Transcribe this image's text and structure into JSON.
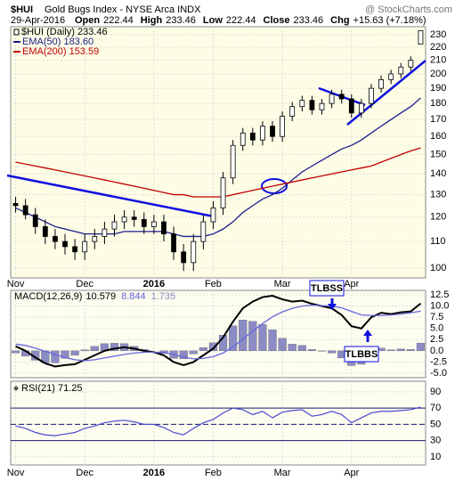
{
  "chart_data": [
    {
      "type": "candlestick",
      "title": "$HUI",
      "subtitle": "Gold Bugs Index - NYSE Arca INDX",
      "credit": "@ StockCharts.com",
      "date": "29-Apr-2016",
      "quote": [
        {
          "label": "Open",
          "value": 222.44
        },
        {
          "label": "High",
          "value": 233.46
        },
        {
          "label": "Low",
          "value": 222.44
        },
        {
          "label": "Close",
          "value": 233.46
        },
        {
          "label": "Chg",
          "value": "+15.63 (+7.18%)"
        }
      ],
      "categories": [
        "Nov",
        null,
        null,
        null,
        null,
        null,
        null,
        "Dec",
        null,
        null,
        null,
        null,
        null,
        null,
        "2016",
        null,
        null,
        null,
        null,
        null,
        "Feb",
        null,
        null,
        null,
        null,
        null,
        null,
        "Mar",
        null,
        null,
        null,
        null,
        null,
        null,
        "Apr",
        null,
        null,
        null,
        null,
        null,
        null,
        null
      ],
      "candle_name": "$HUI (Daily) 233.46",
      "open": [
        126,
        125,
        121,
        116,
        112,
        110,
        108,
        106,
        110,
        112,
        115,
        118,
        120,
        119,
        116,
        118,
        113,
        106,
        102,
        110,
        118,
        124,
        138,
        155,
        162,
        158,
        166,
        160,
        172,
        178,
        182,
        176,
        180,
        186,
        183,
        174,
        180,
        190,
        196,
        200,
        205,
        222.44
      ],
      "high": [
        129,
        128,
        124,
        119,
        115,
        113,
        111,
        113,
        115,
        118,
        121,
        123,
        123,
        122,
        121,
        121,
        116,
        109,
        113,
        121,
        127,
        141,
        158,
        165,
        165,
        169,
        169,
        175,
        181,
        185,
        185,
        183,
        189,
        189,
        186,
        183,
        193,
        199,
        203,
        208,
        213,
        233.46
      ],
      "low": [
        122,
        119,
        113,
        109,
        107,
        105,
        103,
        103,
        107,
        109,
        112,
        115,
        116,
        113,
        113,
        110,
        103,
        99,
        99,
        107,
        115,
        121,
        135,
        152,
        155,
        155,
        157,
        157,
        169,
        175,
        173,
        173,
        177,
        180,
        171,
        171,
        177,
        187,
        193,
        197,
        202,
        222.44
      ],
      "close": [
        125,
        121,
        116,
        112,
        110,
        108,
        106,
        110,
        112,
        115,
        118,
        120,
        119,
        116,
        118,
        113,
        106,
        102,
        110,
        118,
        124,
        138,
        155,
        162,
        158,
        166,
        160,
        172,
        178,
        182,
        176,
        180,
        186,
        183,
        174,
        180,
        190,
        196,
        200,
        205,
        210,
        233.46
      ],
      "series": [
        {
          "name": "EMA(50) 183.60",
          "color": "#1c1c8c",
          "values": [
            124,
            122,
            120,
            118,
            116,
            115,
            114,
            113,
            113,
            113,
            113,
            114,
            114,
            114,
            114,
            114,
            113,
            112,
            112,
            112,
            113,
            115,
            118,
            122,
            125,
            128,
            130,
            133,
            137,
            141,
            144,
            147,
            150,
            153,
            155,
            158,
            162,
            166,
            170,
            174,
            178,
            183.6
          ]
        },
        {
          "name": "EMA(200) 153.59",
          "color": "#c00000",
          "values": [
            146,
            145,
            144,
            143,
            142,
            141,
            140,
            139,
            138,
            137,
            136,
            135,
            134,
            133,
            132,
            131,
            130,
            130,
            129,
            129,
            129,
            129,
            130,
            131,
            132,
            133,
            134,
            135,
            136,
            137,
            138,
            139,
            140,
            141,
            142,
            143,
            144,
            146,
            148,
            150,
            152,
            153.59
          ]
        }
      ],
      "log": true,
      "grid": true,
      "ylim": [
        96.6,
        236.7
      ],
      "yticks": [
        100,
        110,
        120,
        130,
        140,
        150,
        160,
        170,
        180,
        190,
        200,
        210,
        220,
        230
      ]
    },
    {
      "type": "macd",
      "legend": "MACD(12,26,9)",
      "legend_values": [
        10.579,
        8.844,
        1.735
      ],
      "series": [
        {
          "kind": "line",
          "color": "#000000",
          "values": [
            1,
            0,
            -1.5,
            -2.8,
            -3.5,
            -3.2,
            -3,
            -2,
            -1,
            0,
            0.5,
            0.8,
            0.5,
            0,
            -0.3,
            -1,
            -2.5,
            -3.2,
            -2.5,
            -1,
            0.5,
            3,
            6.5,
            9.5,
            11,
            12,
            12.3,
            11.5,
            11,
            11.2,
            10.5,
            10,
            9.5,
            8,
            5.5,
            5,
            7.5,
            8.5,
            8.2,
            8.6,
            8.8,
            10.579
          ]
        },
        {
          "kind": "line",
          "color": "#6666dd",
          "values": [
            1.5,
            1.2,
            0.6,
            -0.1,
            -0.8,
            -1.5,
            -2,
            -2.2,
            -2,
            -1.6,
            -1.2,
            -0.8,
            -0.5,
            -0.3,
            -0.3,
            -0.4,
            -0.8,
            -1.4,
            -1.8,
            -1.7,
            -1.3,
            -0.5,
            0.9,
            2.6,
            4.4,
            6.1,
            7.6,
            8.7,
            9.5,
            10,
            10.2,
            10.1,
            10,
            9.6,
            8.8,
            8,
            7.9,
            7.9,
            8,
            8.2,
            8.5,
            8.844
          ]
        },
        {
          "kind": "bar",
          "color": "#8c8cc4",
          "values": [
            -0.5,
            -1.2,
            -2.1,
            -2.7,
            -2.7,
            -1.7,
            -1,
            0.2,
            1,
            1.6,
            1.7,
            1.6,
            1,
            0.3,
            0,
            -0.6,
            -1.7,
            -1.8,
            -0.7,
            0.7,
            1.8,
            3.5,
            5.6,
            6.9,
            6.6,
            5.9,
            4.7,
            2.8,
            1.5,
            1.2,
            0.3,
            -0.1,
            -0.5,
            -1.6,
            -3.3,
            -3,
            -0.4,
            0.6,
            0.2,
            0.4,
            0.3,
            1.735
          ]
        }
      ],
      "annotations": [
        "TLBSS",
        "TLBBS"
      ],
      "grid": true,
      "ylim": [
        -6,
        13.5
      ],
      "yticks": [
        12.5,
        {
          "value": 10,
          "label": "10.0"
        },
        7.5,
        {
          "value": 5,
          "label": "5.0"
        },
        2.5,
        {
          "value": 0,
          "label": "0.0"
        },
        -2.5,
        {
          "value": -5,
          "label": "-5.0"
        }
      ]
    },
    {
      "type": "line",
      "categories": [
        "Nov",
        null,
        null,
        null,
        null,
        null,
        null,
        "Dec",
        null,
        null,
        null,
        null,
        null,
        null,
        "2016",
        null,
        null,
        null,
        null,
        null,
        "Feb",
        null,
        null,
        null,
        null,
        null,
        null,
        "Mar",
        null,
        null,
        null,
        null,
        null,
        null,
        "Apr",
        null,
        null,
        null,
        null,
        null,
        null,
        null
      ],
      "series": [
        {
          "name": "RSI(21) 71.25",
          "color": "#4a4ad0",
          "values": [
            48,
            45,
            40,
            37,
            36,
            38,
            40,
            45,
            48,
            52,
            54,
            55,
            53,
            50,
            50,
            46,
            40,
            37,
            45,
            52,
            56,
            64,
            70,
            68,
            62,
            66,
            58,
            65,
            67,
            68,
            60,
            62,
            66,
            62,
            52,
            58,
            64,
            66,
            66,
            67,
            68,
            71.25
          ]
        }
      ],
      "reference_lines": [
        70,
        50,
        30
      ],
      "grid": true,
      "ylim": [
        0,
        103
      ],
      "yticks": [
        90,
        70,
        50,
        30,
        10
      ]
    }
  ]
}
